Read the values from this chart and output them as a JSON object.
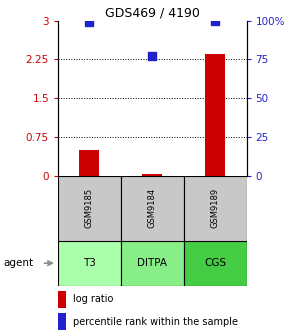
{
  "title": "GDS469 / 4190",
  "categories": [
    "T3",
    "DITPA",
    "CGS"
  ],
  "sample_ids": [
    "GSM9185",
    "GSM9184",
    "GSM9189"
  ],
  "x_positions": [
    1,
    2,
    3
  ],
  "log_ratio": [
    0.5,
    0.04,
    2.35
  ],
  "percentile_rank": [
    2.97,
    2.32,
    2.99
  ],
  "left_ylim": [
    0,
    3
  ],
  "left_yticks": [
    0,
    0.75,
    1.5,
    2.25,
    3
  ],
  "left_yticklabels": [
    "0",
    "0.75",
    "1.5",
    "2.25",
    "3"
  ],
  "right_yticks": [
    0,
    0.75,
    1.5,
    2.25,
    3
  ],
  "right_yticklabels": [
    "0",
    "25",
    "50",
    "75",
    "100%"
  ],
  "bar_color": "#cc0000",
  "dot_color": "#2222cc",
  "dot_size": 30,
  "bar_width": 0.32,
  "grid_yticks": [
    0.75,
    1.5,
    2.25
  ],
  "agent_label": "agent",
  "legend_log_ratio": "log ratio",
  "legend_percentile": "percentile rank within the sample",
  "sample_bg_color": "#c8c8c8",
  "agent_colors": [
    "#aaffaa",
    "#88ee88",
    "#44cc44"
  ],
  "agent_arrow_color": "#888888",
  "left_tick_color": "#cc0000",
  "right_tick_color": "#2222cc",
  "title_fontsize": 9,
  "tick_fontsize": 7.5,
  "label_fontsize": 7,
  "sample_fontsize": 6,
  "agent_fontsize": 7.5,
  "agent_label_fontsize": 7.5
}
